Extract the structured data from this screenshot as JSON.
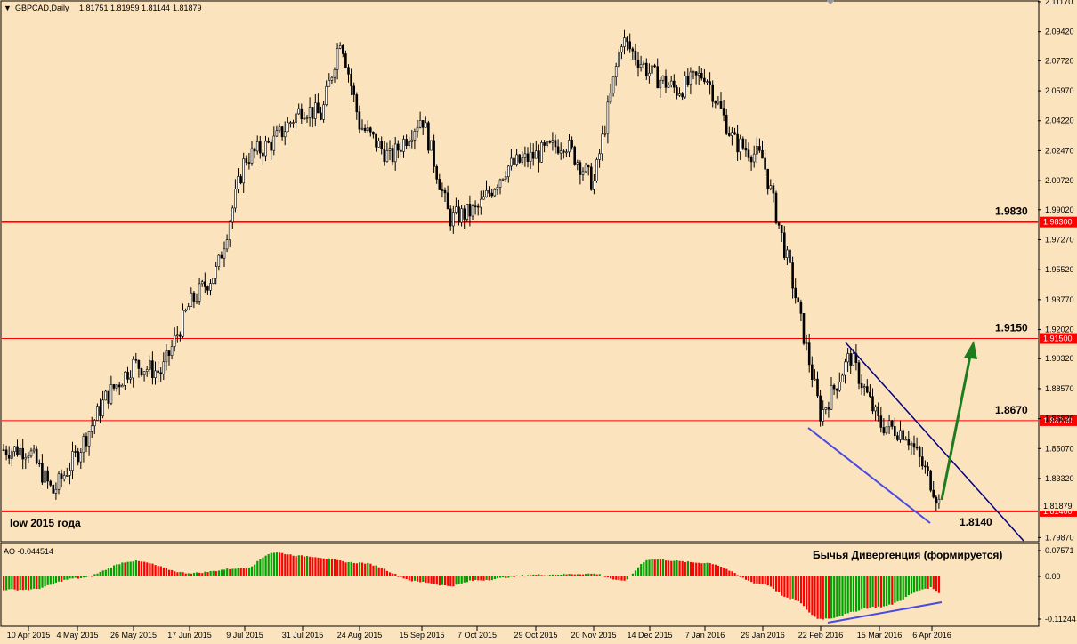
{
  "window": {
    "symbol_caption": "GBPCAD,Daily",
    "ohlc": [
      "1.81751",
      "1.81959",
      "1.81144",
      "1.81879"
    ]
  },
  "colors": {
    "background": "#FBE3BE",
    "axis_line": "#000000",
    "candle_body": "#000000",
    "resistance_line": "#FF0000",
    "channel_upper": "#000080",
    "channel_lower": "#4A4AE0",
    "arrow": "#1E7B1E",
    "ao_up": "#00A000",
    "ao_down": "#FF0000"
  },
  "chart_data": [
    {
      "type": "candlestick",
      "symbol": "GBPCAD",
      "timeframe": "Daily",
      "ylim": [
        1.7968,
        2.1117
      ],
      "y_ticks": [
        "2.11170",
        "2.09420",
        "2.07720",
        "2.05970",
        "2.04220",
        "2.02470",
        "2.00720",
        "1.99020",
        "1.97270",
        "1.95520",
        "1.93770",
        "1.92020",
        "1.90320",
        "1.88570",
        "1.86820",
        "1.85070",
        "1.83320",
        "1.79870"
      ],
      "x_ticks": [
        "10 Apr 2015",
        "4 May 2015",
        "26 May 2015",
        "17 Jun 2015",
        "9 Jul 2015",
        "31 Jul 2015",
        "24 Aug 2015",
        "15 Sep 2015",
        "7 Oct 2015",
        "29 Oct 2015",
        "20 Nov 2015",
        "14 Dec 2015",
        "7 Jan 2016",
        "29 Jan 2016",
        "22 Feb 2016",
        "15 Mar 2016",
        "6 Apr 2016"
      ],
      "current_price": "1.81879",
      "close_series": [
        {
          "date": "10 Apr 2015",
          "close": 1.85
        },
        {
          "date": "20 Apr 2015",
          "close": 1.825
        },
        {
          "date": "4 May 2015",
          "close": 1.848
        },
        {
          "date": "12 May 2015",
          "close": 1.88
        },
        {
          "date": "26 May 2015",
          "close": 1.9
        },
        {
          "date": "5 Jun 2015",
          "close": 1.895
        },
        {
          "date": "17 Jun 2015",
          "close": 1.935
        },
        {
          "date": "29 Jun 2015",
          "close": 1.955
        },
        {
          "date": "9 Jul 2015",
          "close": 2.02
        },
        {
          "date": "20 Jul 2015",
          "close": 2.03
        },
        {
          "date": "31 Jul 2015",
          "close": 2.05
        },
        {
          "date": "12 Aug 2015",
          "close": 2.045
        },
        {
          "date": "20 Aug 2015",
          "close": 2.092
        },
        {
          "date": "24 Aug 2015",
          "close": 2.04
        },
        {
          "date": "2 Sep 2015",
          "close": 2.02
        },
        {
          "date": "15 Sep 2015",
          "close": 2.045
        },
        {
          "date": "29 Sep 2015",
          "close": 1.985
        },
        {
          "date": "7 Oct 2015",
          "close": 1.99
        },
        {
          "date": "19 Oct 2015",
          "close": 2.015
        },
        {
          "date": "29 Oct 2015",
          "close": 2.022
        },
        {
          "date": "10 Nov 2015",
          "close": 2.03
        },
        {
          "date": "20 Nov 2015",
          "close": 2.005
        },
        {
          "date": "3 Dec 2015",
          "close": 2.09
        },
        {
          "date": "14 Dec 2015",
          "close": 2.07
        },
        {
          "date": "28 Dec 2015",
          "close": 2.06
        },
        {
          "date": "7 Jan 2016",
          "close": 2.07
        },
        {
          "date": "18 Jan 2016",
          "close": 2.03
        },
        {
          "date": "29 Jan 2016",
          "close": 2.02
        },
        {
          "date": "9 Feb 2016",
          "close": 1.95
        },
        {
          "date": "22 Feb 2016",
          "close": 1.87
        },
        {
          "date": "1 Mar 2016",
          "close": 1.905
        },
        {
          "date": "15 Mar 2016",
          "close": 1.865
        },
        {
          "date": "25 Mar 2016",
          "close": 1.86
        },
        {
          "date": "6 Apr 2016",
          "close": 1.83
        },
        {
          "date": "12 Apr 2016",
          "close": 1.819
        }
      ]
    },
    {
      "type": "bar",
      "indicator": "AO",
      "caption": "AO -0.044514",
      "ylim": [
        -0.11244,
        0.07571
      ],
      "y_ticks": [
        "0.07571",
        "0.00",
        "-0.11244"
      ],
      "annotation": "Бычья Дивергенция  (формируется)",
      "points": [
        {
          "date": "10 Apr 2015",
          "value": -0.035
        },
        {
          "date": "4 May 2015",
          "value": -0.005
        },
        {
          "date": "26 May 2015",
          "value": 0.045
        },
        {
          "date": "17 Jun 2015",
          "value": 0.01
        },
        {
          "date": "9 Jul 2015",
          "value": 0.025
        },
        {
          "date": "20 Jul 2015",
          "value": 0.07
        },
        {
          "date": "31 Jul 2015",
          "value": 0.06
        },
        {
          "date": "24 Aug 2015",
          "value": 0.04
        },
        {
          "date": "15 Sep 2015",
          "value": -0.015
        },
        {
          "date": "29 Sep 2015",
          "value": -0.025
        },
        {
          "date": "7 Oct 2015",
          "value": -0.01
        },
        {
          "date": "29 Oct 2015",
          "value": 0.005
        },
        {
          "date": "20 Nov 2015",
          "value": 0.008
        },
        {
          "date": "1 Dec 2015",
          "value": -0.012
        },
        {
          "date": "14 Dec 2015",
          "value": 0.05
        },
        {
          "date": "7 Jan 2016",
          "value": 0.04
        },
        {
          "date": "29 Jan 2016",
          "value": -0.02
        },
        {
          "date": "9 Feb 2016",
          "value": -0.06
        },
        {
          "date": "22 Feb 2016",
          "value": -0.112
        },
        {
          "date": "15 Mar 2016",
          "value": -0.08
        },
        {
          "date": "6 Apr 2016",
          "value": -0.03
        },
        {
          "date": "12 Apr 2016",
          "value": -0.044
        }
      ]
    }
  ],
  "levels": [
    {
      "label": "1.9830",
      "tag": "1.98300",
      "price": 1.983
    },
    {
      "label": "1.9150",
      "tag": "1.91500",
      "price": 1.915
    },
    {
      "label": "1.8670",
      "tag": "1.86700",
      "price": 1.867
    },
    {
      "label": "1.8140",
      "tag": "1.81400",
      "price": 1.814
    }
  ],
  "low_label": "low 2015 года"
}
